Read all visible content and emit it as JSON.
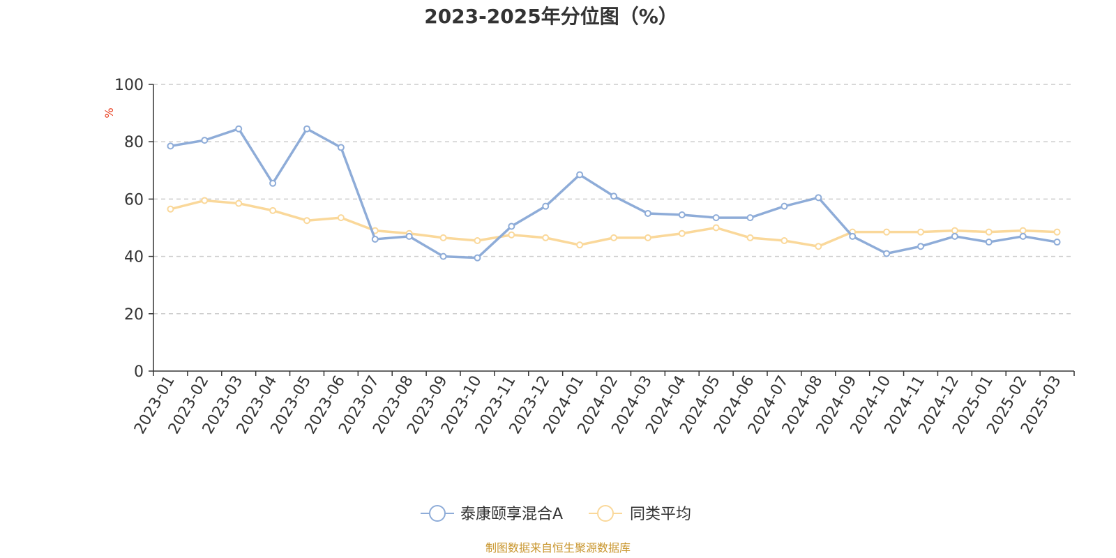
{
  "chart_data": {
    "type": "line",
    "title": "2023-2025年分位图（%）",
    "ylabel": "%",
    "xlabel": "",
    "ylim": [
      0,
      100
    ],
    "yticks": [
      0,
      20,
      40,
      60,
      80,
      100
    ],
    "grid": true,
    "legend_position": "bottom",
    "categories": [
      "2023-01",
      "2023-02",
      "2023-03",
      "2023-04",
      "2023-05",
      "2023-06",
      "2023-07",
      "2023-08",
      "2023-09",
      "2023-10",
      "2023-11",
      "2023-12",
      "2024-01",
      "2024-02",
      "2024-03",
      "2024-04",
      "2024-05",
      "2024-06",
      "2024-07",
      "2024-08",
      "2024-09",
      "2024-10",
      "2024-11",
      "2024-12",
      "2025-01",
      "2025-02",
      "2025-03"
    ],
    "series": [
      {
        "name": "泰康颐享混合A",
        "color": "#8eacd8",
        "values": [
          78.5,
          80.5,
          84.5,
          65.5,
          84.5,
          78.0,
          46.0,
          47.0,
          40.0,
          39.5,
          50.5,
          57.5,
          68.5,
          61.0,
          55.0,
          54.5,
          53.5,
          53.5,
          57.5,
          60.5,
          47.0,
          41.0,
          43.5,
          47.0,
          45.0,
          47.0,
          45.0
        ]
      },
      {
        "name": "同类平均",
        "color": "#fad89a",
        "values": [
          56.5,
          59.5,
          58.5,
          56.0,
          52.5,
          53.5,
          49.0,
          48.0,
          46.5,
          45.5,
          47.5,
          46.5,
          44.0,
          46.5,
          46.5,
          48.0,
          50.0,
          46.5,
          45.5,
          43.5,
          48.5,
          48.5,
          48.5,
          49.0,
          48.5,
          49.0,
          48.5
        ]
      }
    ]
  },
  "colors": {
    "title": "#333333",
    "axis": "#333333",
    "grid": "#cccccc",
    "ylabel": "#e8391a",
    "source": "#c9962e"
  },
  "source_text": "制图数据来自恒生聚源数据库"
}
